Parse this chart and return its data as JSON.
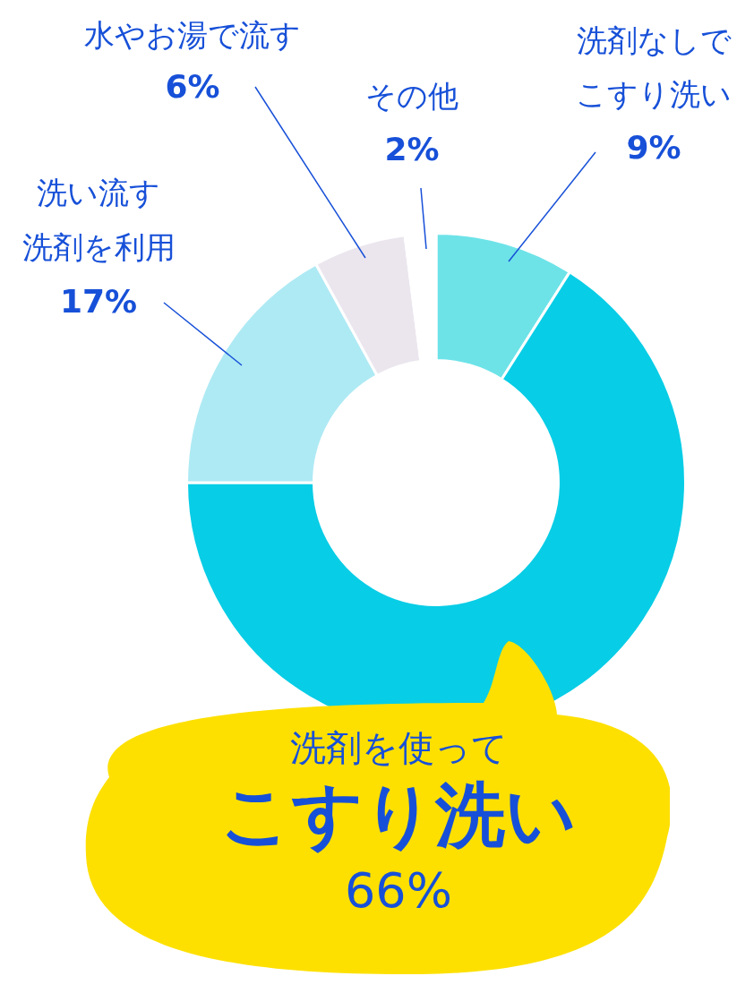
{
  "chart_data": {
    "type": "donut",
    "categories": [
      "洗剤なしでこすり洗い",
      "洗剤を使ってこすり洗い",
      "洗い流す洗剤を利用",
      "水やお湯で流す",
      "その他"
    ],
    "values": [
      9,
      66,
      17,
      6,
      2
    ],
    "colors": [
      "#6de3e8",
      "#08cde6",
      "#aeeaf4",
      "#ebe6ee",
      "#ffffff"
    ],
    "value_labels": [
      "9%",
      "66%",
      "17%",
      "6%",
      "2%"
    ]
  }
}
